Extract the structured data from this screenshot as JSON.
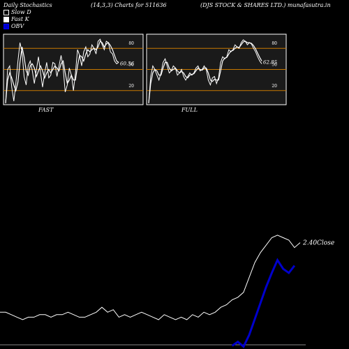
{
  "header": {
    "left": "Daily Stochastics",
    "middle": "(14,3,3) Charts for 511636",
    "right": "(DJS STOCK & SHARES LTD.) munafasutra.in"
  },
  "legend": [
    {
      "label": "Slow  D",
      "style": "outline"
    },
    {
      "label": "Fast K",
      "style": "filled"
    },
    {
      "label": "OBV",
      "style": "blue"
    }
  ],
  "colors": {
    "background": "#000000",
    "panel_bg": "#1a1a1a",
    "level_line": "#c87800",
    "price_line": "#ffffff",
    "obv_line": "#0000cc"
  },
  "chart_data": [
    {
      "type": "line",
      "name_label": "FAST",
      "ylim": [
        0,
        100
      ],
      "levels": [
        20,
        50,
        80
      ],
      "level_labels": [
        "20",
        "50",
        "80"
      ],
      "last_value_label": "60.56",
      "series": [
        {
          "name": "Fast K",
          "values": [
            2,
            50,
            55,
            25,
            5,
            30,
            62,
            88,
            75,
            40,
            28,
            55,
            62,
            48,
            30,
            50,
            68,
            45,
            25,
            45,
            60,
            38,
            42,
            60,
            58,
            40,
            55,
            70,
            52,
            18,
            28,
            52,
            42,
            20,
            45,
            78,
            70,
            55,
            75,
            82,
            68,
            72,
            85,
            80,
            72,
            90,
            93,
            85,
            78,
            90,
            88,
            75,
            72,
            62,
            58,
            60
          ]
        },
        {
          "name": "Slow D",
          "values": [
            2,
            35,
            45,
            38,
            28,
            20,
            32,
            60,
            82,
            68,
            48,
            42,
            55,
            58,
            52,
            40,
            48,
            55,
            48,
            38,
            45,
            50,
            45,
            50,
            55,
            52,
            48,
            58,
            62,
            45,
            30,
            35,
            42,
            35,
            35,
            55,
            70,
            68,
            62,
            72,
            78,
            75,
            78,
            80,
            78,
            82,
            90,
            88,
            82,
            86,
            88,
            84,
            78,
            70,
            62,
            60
          ]
        }
      ]
    },
    {
      "type": "line",
      "name_label": "FULL",
      "ylim": [
        0,
        100
      ],
      "levels": [
        20,
        50,
        80
      ],
      "level_labels": [
        "20",
        "50",
        "80"
      ],
      "last_value_label": "62.85",
      "series": [
        {
          "name": "Fast K",
          "values": [
            2,
            40,
            55,
            50,
            42,
            35,
            45,
            60,
            65,
            55,
            45,
            48,
            55,
            52,
            42,
            45,
            50,
            40,
            35,
            40,
            45,
            42,
            45,
            52,
            55,
            48,
            50,
            55,
            50,
            35,
            28,
            38,
            40,
            30,
            38,
            60,
            68,
            65,
            68,
            78,
            75,
            78,
            85,
            82,
            80,
            88,
            92,
            90,
            85,
            88,
            86,
            80,
            75,
            68,
            62,
            58
          ]
        },
        {
          "name": "Slow D",
          "values": [
            2,
            30,
            45,
            50,
            48,
            42,
            42,
            52,
            60,
            60,
            52,
            48,
            50,
            52,
            48,
            45,
            47,
            45,
            40,
            38,
            42,
            43,
            44,
            48,
            52,
            50,
            49,
            52,
            52,
            45,
            35,
            33,
            36,
            35,
            35,
            48,
            62,
            66,
            67,
            72,
            76,
            77,
            80,
            82,
            81,
            85,
            89,
            90,
            88,
            88,
            87,
            84,
            79,
            73,
            67,
            62
          ]
        }
      ]
    },
    {
      "type": "line",
      "name_label": "",
      "last_value_label": "2.40",
      "last_value_suffix": "Close",
      "series": [
        {
          "name": "Close",
          "values": [
            2.12,
            2.12,
            2.11,
            2.1,
            2.09,
            2.1,
            2.1,
            2.11,
            2.11,
            2.1,
            2.11,
            2.11,
            2.12,
            2.11,
            2.1,
            2.1,
            2.11,
            2.12,
            2.14,
            2.12,
            2.13,
            2.1,
            2.11,
            2.1,
            2.11,
            2.12,
            2.11,
            2.1,
            2.09,
            2.11,
            2.1,
            2.09,
            2.1,
            2.09,
            2.11,
            2.1,
            2.12,
            2.11,
            2.12,
            2.14,
            2.15,
            2.17,
            2.18,
            2.2,
            2.26,
            2.32,
            2.36,
            2.39,
            2.42,
            2.43,
            2.42,
            2.41,
            2.38,
            2.4
          ]
        },
        {
          "name": "OBV",
          "values": [
            null,
            null,
            null,
            null,
            null,
            null,
            null,
            null,
            null,
            null,
            null,
            null,
            null,
            null,
            null,
            null,
            null,
            null,
            null,
            null,
            null,
            null,
            null,
            null,
            null,
            null,
            null,
            null,
            null,
            null,
            null,
            null,
            null,
            null,
            null,
            null,
            null,
            null,
            null,
            null,
            null,
            0.88,
            0.98,
            0.86,
            1.15,
            1.55,
            1.95,
            2.35,
            2.7,
            3.02,
            2.8,
            2.7,
            2.88
          ]
        }
      ]
    }
  ]
}
